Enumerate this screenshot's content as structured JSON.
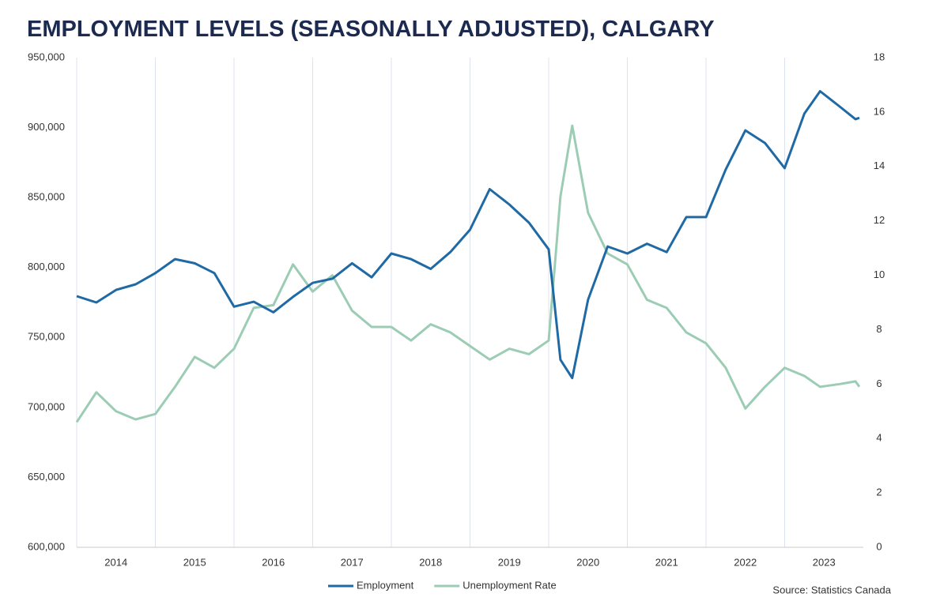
{
  "chart_data": {
    "type": "line",
    "title": "EMPLOYMENT LEVELS (SEASONALLY ADJUSTED), CALGARY",
    "source": "Source: Statistics Canada",
    "x": [
      2014.0,
      2014.25,
      2014.5,
      2014.75,
      2015.0,
      2015.25,
      2015.5,
      2015.75,
      2016.0,
      2016.25,
      2016.5,
      2016.75,
      2017.0,
      2017.25,
      2017.5,
      2017.75,
      2018.0,
      2018.25,
      2018.5,
      2018.75,
      2019.0,
      2019.25,
      2019.5,
      2019.75,
      2020.0,
      2020.15,
      2020.3,
      2020.5,
      2020.75,
      2021.0,
      2021.25,
      2021.5,
      2021.75,
      2022.0,
      2022.25,
      2022.5,
      2022.75,
      2023.0,
      2023.25,
      2023.45,
      2023.7,
      2023.9,
      2023.95
    ],
    "series": [
      {
        "name": "Employment",
        "color": "#1f6aa5",
        "axis": "y",
        "values": [
          779500,
          775000,
          784000,
          788000,
          796000,
          806000,
          803000,
          796000,
          772000,
          775500,
          768000,
          779000,
          789000,
          792000,
          803000,
          793000,
          810000,
          806000,
          799000,
          811000,
          827000,
          856000,
          845000,
          832000,
          813000,
          734000,
          721000,
          777000,
          815000,
          810000,
          817000,
          811000,
          836000,
          836000,
          870000,
          898000,
          889000,
          871000,
          910000,
          926000,
          915000,
          906000,
          907000
        ]
      },
      {
        "name": "Unemployment Rate",
        "color": "#9ccdb4",
        "axis": "y2",
        "values": [
          4.6,
          5.7,
          5.0,
          4.7,
          4.9,
          5.9,
          7.0,
          6.6,
          7.3,
          8.8,
          8.9,
          10.4,
          9.4,
          10.0,
          8.7,
          8.1,
          8.1,
          7.6,
          8.2,
          7.9,
          7.4,
          6.9,
          7.3,
          7.1,
          7.6,
          12.9,
          15.5,
          12.3,
          10.8,
          10.4,
          9.1,
          8.8,
          7.9,
          7.5,
          6.6,
          5.1,
          5.9,
          6.6,
          6.3,
          5.9,
          6.0,
          6.1,
          5.9
        ]
      }
    ],
    "xlim": [
      2014,
      2024
    ],
    "xticks": [
      2014,
      2015,
      2016,
      2017,
      2018,
      2019,
      2020,
      2021,
      2022,
      2023
    ],
    "ylim": [
      600000,
      950000
    ],
    "yticks": [
      {
        "value": 600000,
        "label": "600,000"
      },
      {
        "value": 650000,
        "label": "650,000"
      },
      {
        "value": 700000,
        "label": "700,000"
      },
      {
        "value": 750000,
        "label": "750,000"
      },
      {
        "value": 800000,
        "label": "800,000"
      },
      {
        "value": 850000,
        "label": "850,000"
      },
      {
        "value": 900000,
        "label": "900,000"
      },
      {
        "value": 950000,
        "label": "950,000"
      }
    ],
    "y2lim": [
      0,
      18
    ],
    "y2ticks": [
      0,
      2,
      4,
      6,
      8,
      10,
      12,
      14,
      16,
      18
    ],
    "legend": "bottom"
  }
}
